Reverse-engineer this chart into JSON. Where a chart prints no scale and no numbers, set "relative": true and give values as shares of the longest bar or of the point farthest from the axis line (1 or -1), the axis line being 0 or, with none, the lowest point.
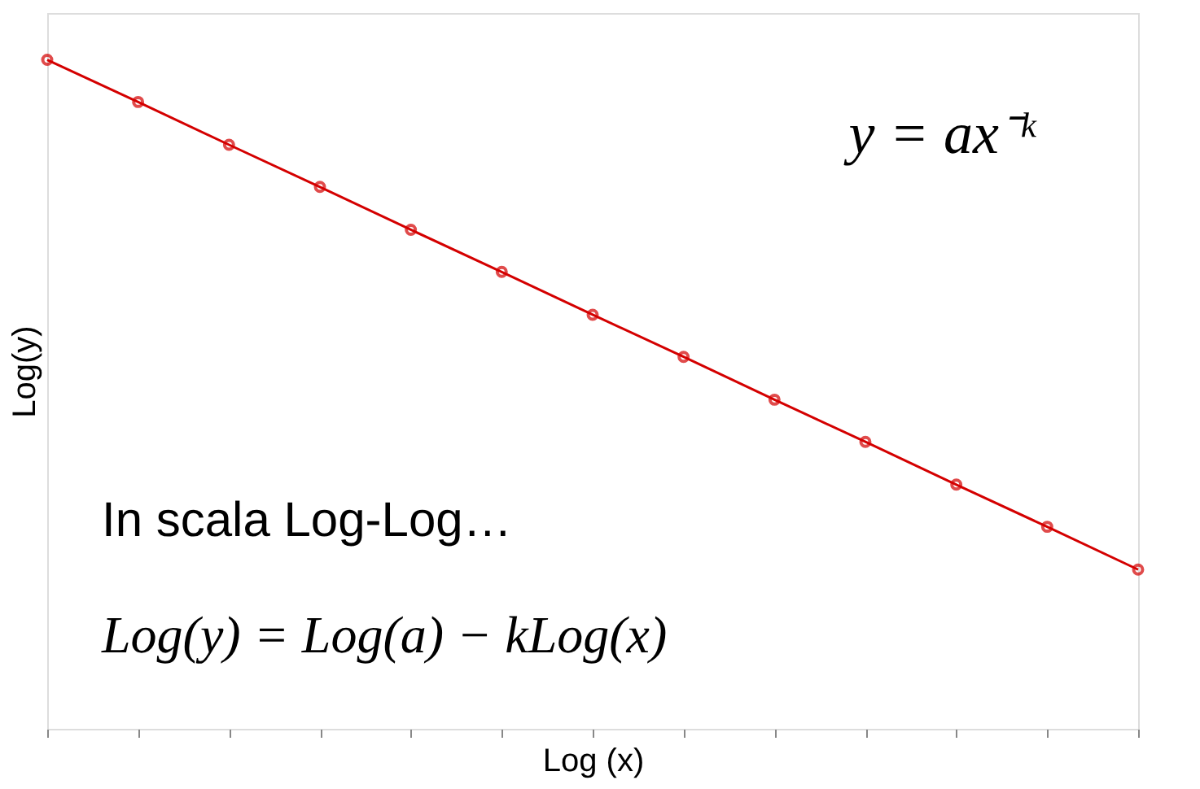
{
  "chart_data": {
    "type": "line",
    "relative": true,
    "xlabel": "Log (x)",
    "ylabel": "Log(y)",
    "marker": "circle",
    "line_style": "solid",
    "grid": false,
    "categories": [
      null,
      null,
      null,
      null,
      null,
      null,
      null,
      null,
      null,
      null,
      null,
      null,
      null
    ],
    "series": [
      {
        "color": "#d40000",
        "values": [
          1,
          0.937,
          0.873,
          0.81,
          0.746,
          0.683,
          0.619,
          0.556,
          0.492,
          0.429,
          0.365,
          0.302,
          0.238
        ]
      }
    ],
    "annotations": [
      "y = ax⁻ᵏ",
      "In scala Log-Log…",
      "Log(y) = Log(a) − kLog(x)"
    ]
  }
}
